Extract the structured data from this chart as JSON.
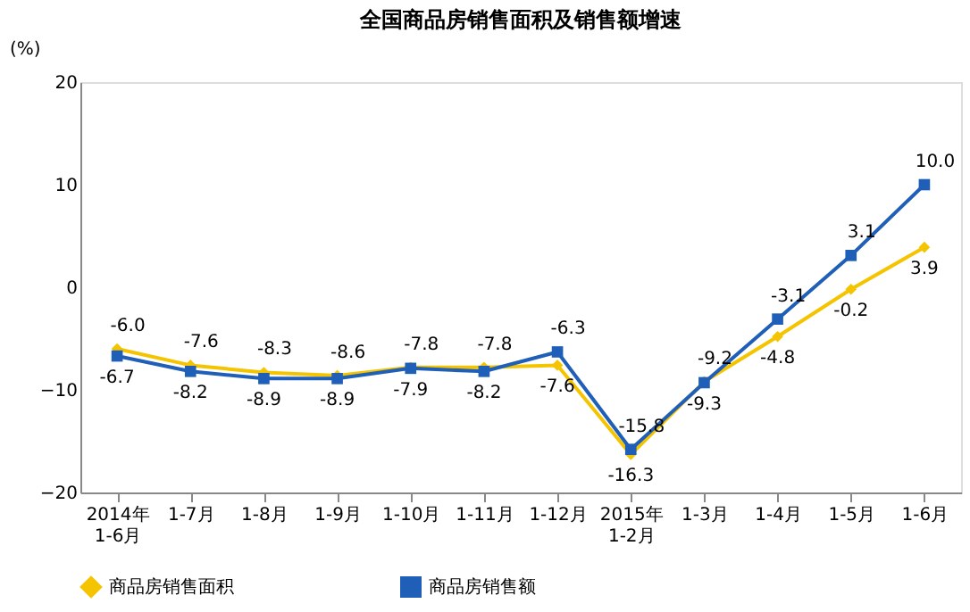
{
  "chart_data": {
    "type": "line",
    "title": "全国商品房销售面积及销售额增速",
    "ylabel": "(%)",
    "categories": [
      "2014年\n1-6月",
      "1-7月",
      "1-8月",
      "1-9月",
      "1-10月",
      "1-11月",
      "1-12月",
      "2015年\n1-2月",
      "1-3月",
      "1-4月",
      "1-5月",
      "1-6月"
    ],
    "series": [
      {
        "name": "商品房销售面积",
        "color": "#f5c400",
        "marker": "diamond",
        "values": [
          -6.0,
          -7.6,
          -8.3,
          -8.6,
          -7.8,
          -7.8,
          -7.6,
          -16.3,
          -9.2,
          -4.8,
          -0.2,
          3.9
        ],
        "value_labels": [
          "-6.0",
          "-7.6",
          "-8.3",
          "-8.6",
          "-7.8",
          "-7.8",
          "-7.6",
          "-16.3",
          "-9.2",
          "-4.8",
          "-0.2",
          "3.9"
        ]
      },
      {
        "name": "商品房销售额",
        "color": "#1f5fb8",
        "marker": "square",
        "values": [
          -6.7,
          -8.2,
          -8.9,
          -8.9,
          -7.9,
          -8.2,
          -6.3,
          -15.8,
          -9.3,
          -3.1,
          3.1,
          10.0
        ],
        "value_labels": [
          "-6.7",
          "-8.2",
          "-8.9",
          "-8.9",
          "-7.9",
          "-8.2",
          "-6.3",
          "-15.8",
          "-9.3",
          "-3.1",
          "3.1",
          "10.0"
        ]
      }
    ],
    "ylim": [
      -20,
      20
    ],
    "yticks": [
      -20,
      -10,
      0,
      10,
      20
    ],
    "grid": false,
    "legend": "bottom",
    "line_style": "solid"
  }
}
